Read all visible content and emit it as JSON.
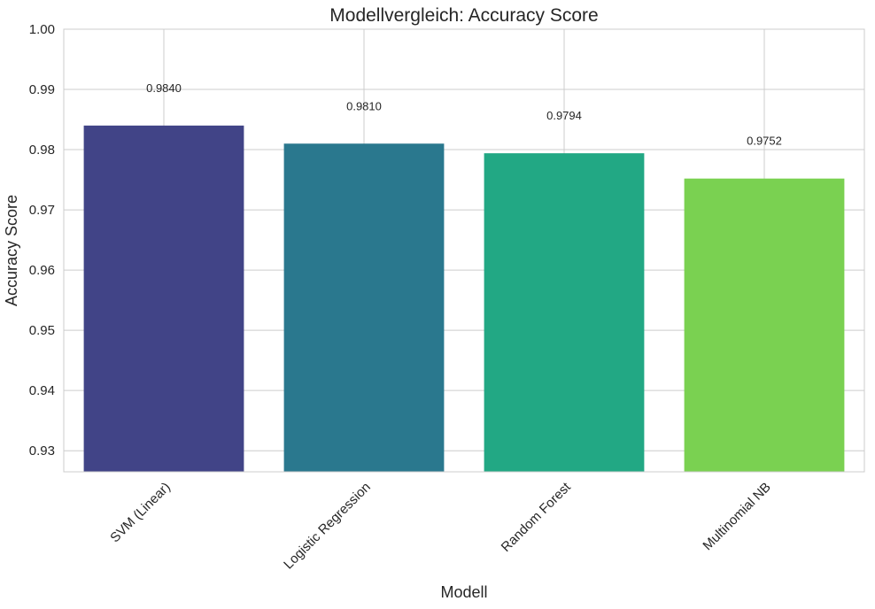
{
  "chart_data": {
    "type": "bar",
    "title": "Modellvergleich: Accuracy Score",
    "xlabel": "Modell",
    "ylabel": "Accuracy Score",
    "categories": [
      "SVM (Linear)",
      "Logistic Regression",
      "Random Forest",
      "Multinomial NB"
    ],
    "values": [
      0.984,
      0.981,
      0.9794,
      0.9752
    ],
    "value_labels": [
      "0.9840",
      "0.9810",
      "0.9794",
      "0.9752"
    ],
    "colors": [
      "#414487",
      "#2a788e",
      "#22a884",
      "#7ad151"
    ],
    "ylim": [
      0.9265,
      1.0
    ],
    "yticks": [
      0.93,
      0.94,
      0.95,
      0.96,
      0.97,
      0.98,
      0.99,
      1.0
    ],
    "ytick_labels": [
      "0.93",
      "0.94",
      "0.95",
      "0.96",
      "0.97",
      "0.98",
      "0.99",
      "1.00"
    ],
    "grid": true,
    "xtick_rotation": "45-degree"
  }
}
